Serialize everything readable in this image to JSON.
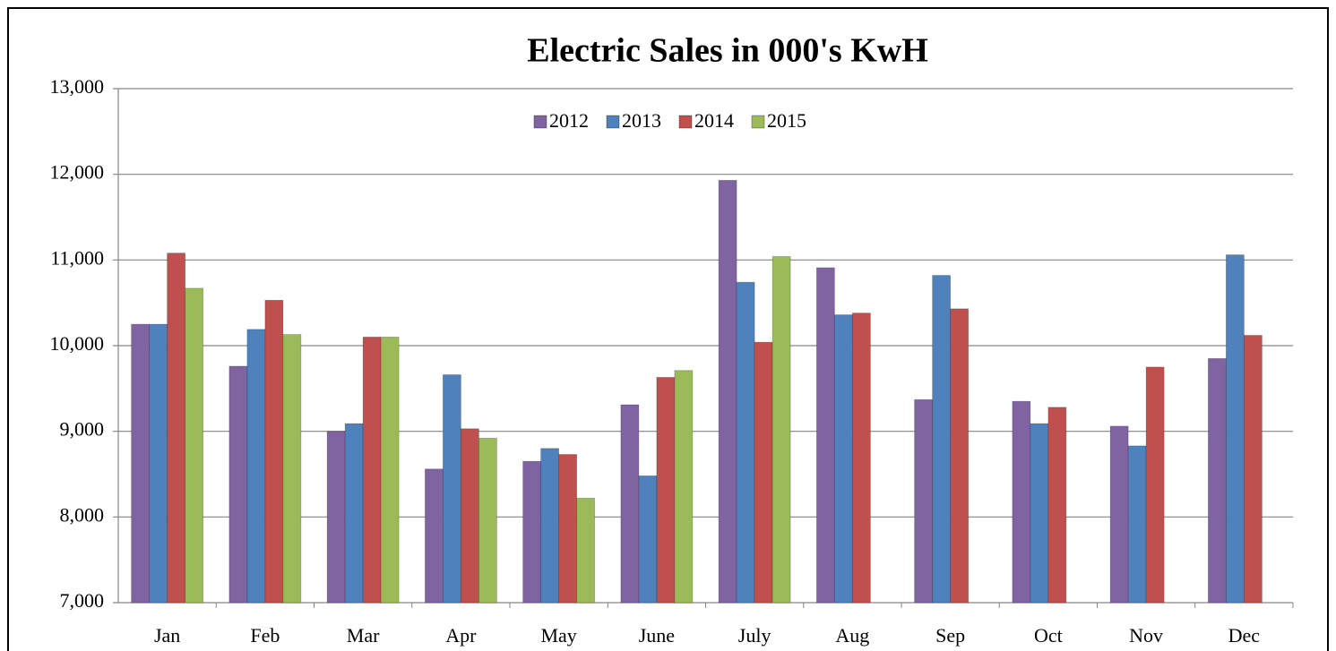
{
  "chart_data": {
    "type": "bar",
    "title": "Electric Sales in 000's KwH",
    "categories": [
      "Jan",
      "Feb",
      "Mar",
      "Apr",
      "May",
      "June",
      "July",
      "Aug",
      "Sep",
      "Oct",
      "Nov",
      "Dec"
    ],
    "series": [
      {
        "name": "2012",
        "color": "#8064a2",
        "values": [
          10250,
          9760,
          9000,
          8560,
          8650,
          9310,
          11930,
          10910,
          9370,
          9350,
          9060,
          9850
        ]
      },
      {
        "name": "2013",
        "color": "#4f81bd",
        "values": [
          10250,
          10190,
          9090,
          9660,
          8800,
          8480,
          10740,
          10360,
          10820,
          9090,
          8830,
          11060
        ]
      },
      {
        "name": "2014",
        "color": "#c0504d",
        "values": [
          11080,
          10530,
          10100,
          9030,
          8730,
          9630,
          10040,
          10380,
          10430,
          9280,
          9750,
          10120
        ]
      },
      {
        "name": "2015",
        "color": "#9bbb59",
        "values": [
          10670,
          10130,
          10100,
          8920,
          8220,
          9710,
          11040,
          null,
          null,
          null,
          null,
          null
        ]
      }
    ],
    "ylim": [
      7000,
      13000
    ],
    "yticks": [
      {
        "value": 7000,
        "label": "7,000"
      },
      {
        "value": 8000,
        "label": "8,000"
      },
      {
        "value": 9000,
        "label": "9,000"
      },
      {
        "value": 10000,
        "label": "10,000"
      },
      {
        "value": 11000,
        "label": "11,000"
      },
      {
        "value": 12000,
        "label": "12,000"
      },
      {
        "value": 13000,
        "label": "13,000"
      }
    ],
    "grid": true,
    "legend": "top"
  }
}
